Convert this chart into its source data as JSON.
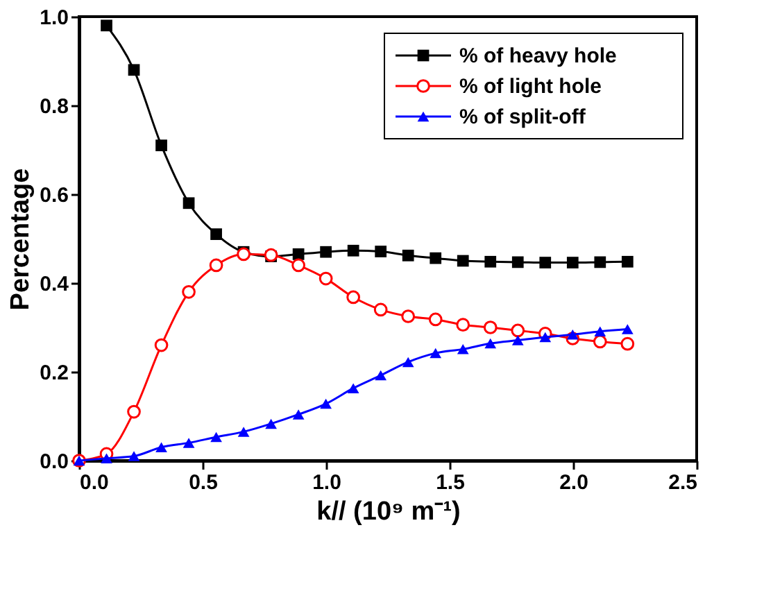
{
  "chart_data": {
    "type": "line",
    "xlabel": "k// (10⁹ m⁻¹)",
    "ylabel": "Percentage",
    "xlim": [
      0,
      2.5
    ],
    "xticks": [
      {
        "value": 0,
        "label": "0.0"
      },
      0.5,
      {
        "value": 1,
        "label": "1.0"
      },
      1.5,
      {
        "value": 2,
        "label": "2.0"
      },
      2.5
    ],
    "ylim": [
      0,
      1
    ],
    "yticks": [
      {
        "value": 0,
        "label": "0.0"
      },
      0.2,
      0.4,
      0.6,
      0.8,
      {
        "value": 1,
        "label": "1.0"
      }
    ],
    "grid": false,
    "legend": "top right",
    "line_style": "solid",
    "series": [
      {
        "name": "% of heavy hole",
        "color": "#000000",
        "marker": "square",
        "x": [
          0.111,
          0.222,
          0.333,
          0.444,
          0.555,
          0.666,
          0.777,
          0.888,
          0.999,
          1.11,
          1.221,
          1.332,
          1.443,
          1.554,
          1.665,
          1.776,
          1.887,
          1.998,
          2.109,
          2.22
        ],
        "values": [
          0.98,
          0.88,
          0.71,
          0.58,
          0.51,
          0.47,
          0.46,
          0.465,
          0.47,
          0.473,
          0.471,
          0.462,
          0.456,
          0.45,
          0.448,
          0.447,
          0.446,
          0.446,
          0.447,
          0.448
        ]
      },
      {
        "name": "% of light  hole",
        "color": "#ff0000",
        "marker": "circle",
        "x": [
          0,
          0.111,
          0.222,
          0.333,
          0.444,
          0.555,
          0.666,
          0.777,
          0.888,
          0.999,
          1.11,
          1.221,
          1.332,
          1.443,
          1.554,
          1.665,
          1.776,
          1.887,
          1.998,
          2.109,
          2.22
        ],
        "values": [
          0,
          0.015,
          0.11,
          0.26,
          0.38,
          0.44,
          0.465,
          0.463,
          0.44,
          0.41,
          0.368,
          0.34,
          0.325,
          0.318,
          0.306,
          0.3,
          0.293,
          0.286,
          0.275,
          0.268,
          0.263
        ]
      },
      {
        "name": "% of split-off",
        "color": "#0000ff",
        "marker": "triangle",
        "x": [
          0,
          0.111,
          0.222,
          0.333,
          0.444,
          0.555,
          0.666,
          0.777,
          0.888,
          0.999,
          1.11,
          1.221,
          1.332,
          1.443,
          1.554,
          1.665,
          1.776,
          1.887,
          1.998,
          2.109,
          2.22
        ],
        "values": [
          0,
          0.005,
          0.01,
          0.03,
          0.04,
          0.053,
          0.065,
          0.083,
          0.104,
          0.128,
          0.163,
          0.192,
          0.222,
          0.242,
          0.251,
          0.264,
          0.271,
          0.278,
          0.284,
          0.291,
          0.296
        ]
      }
    ]
  }
}
